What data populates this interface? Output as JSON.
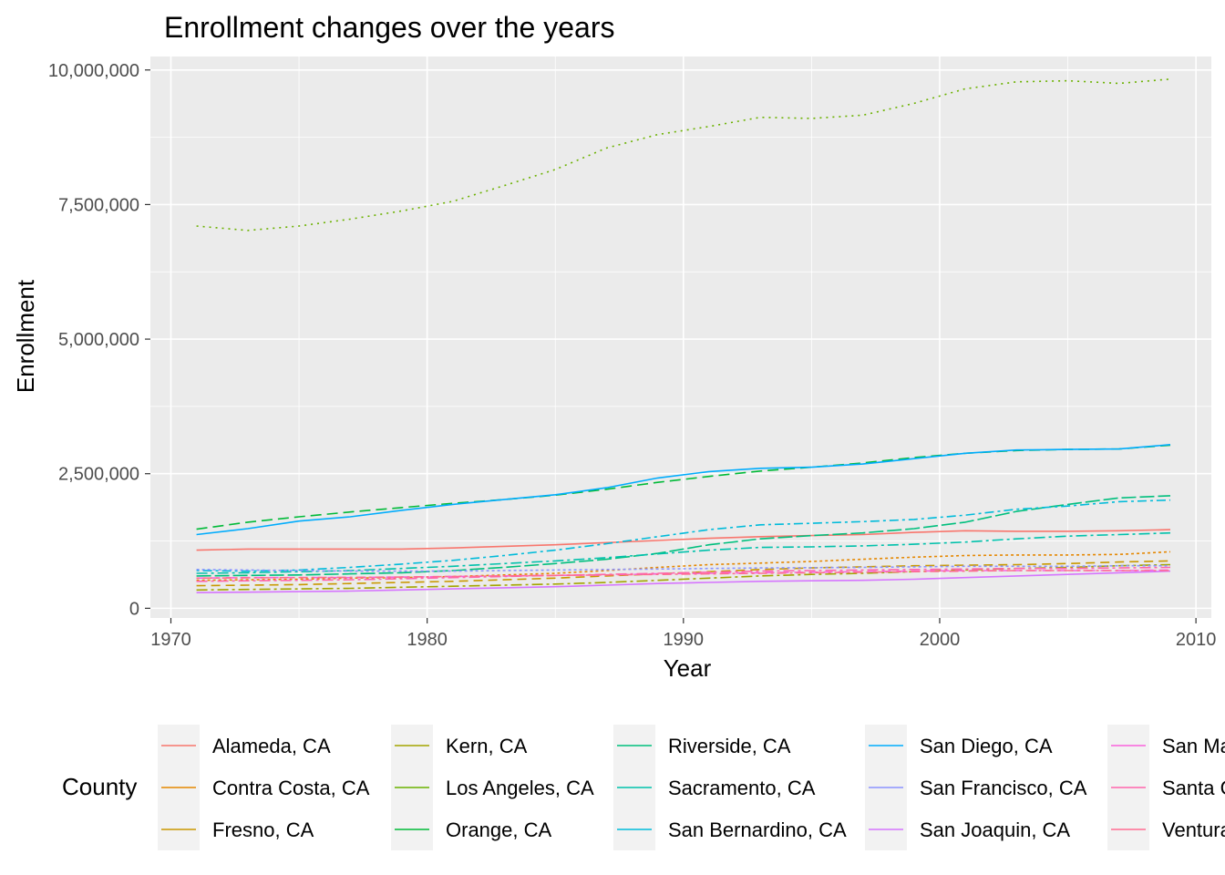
{
  "chart_data": {
    "type": "line",
    "title": "Enrollment changes over the years",
    "xlabel": "Year",
    "ylabel": "Enrollment",
    "xlim": [
      1969.2,
      2010.6
    ],
    "ylim": [
      -180000,
      10250000
    ],
    "x_ticks": [
      1970,
      1980,
      1990,
      2000,
      2010
    ],
    "y_ticks": [
      0,
      2500000,
      5000000,
      7500000,
      10000000
    ],
    "y_tick_labels": [
      "0",
      "2,500,000",
      "5,000,000",
      "7,500,000",
      "10,000,000"
    ],
    "grid": true,
    "legend_position": "bottom",
    "legend_title": "County",
    "years": [
      1971,
      1973,
      1975,
      1977,
      1979,
      1981,
      1983,
      1985,
      1987,
      1989,
      1991,
      1993,
      1995,
      1997,
      1999,
      2001,
      2003,
      2005,
      2007,
      2009
    ],
    "series": [
      {
        "name": "Alameda, CA",
        "color": "#F8766D",
        "dash": "",
        "values": [
          1080000,
          1100000,
          1100000,
          1100000,
          1100000,
          1120000,
          1150000,
          1180000,
          1220000,
          1260000,
          1300000,
          1330000,
          1350000,
          1370000,
          1410000,
          1440000,
          1430000,
          1430000,
          1440000,
          1460000
        ]
      },
      {
        "name": "Contra Costa, CA",
        "color": "#E58700",
        "dash": "3 3",
        "values": [
          520000,
          530000,
          540000,
          560000,
          570000,
          590000,
          620000,
          650000,
          700000,
          760000,
          810000,
          840000,
          870000,
          910000,
          950000,
          980000,
          990000,
          990000,
          1000000,
          1050000
        ]
      },
      {
        "name": "Fresno, CA",
        "color": "#C99800",
        "dash": "10 6",
        "values": [
          420000,
          430000,
          440000,
          460000,
          480000,
          500000,
          530000,
          560000,
          600000,
          640000,
          680000,
          720000,
          750000,
          770000,
          790000,
          800000,
          810000,
          830000,
          860000,
          880000
        ]
      },
      {
        "name": "Kern, CA",
        "color": "#A3A500",
        "dash": "12 4 3 4",
        "values": [
          340000,
          350000,
          360000,
          370000,
          390000,
          410000,
          430000,
          450000,
          480000,
          520000,
          560000,
          600000,
          630000,
          650000,
          680000,
          710000,
          740000,
          760000,
          790000,
          810000
        ]
      },
      {
        "name": "Los Angeles, CA",
        "color": "#6BB100",
        "dash": "2 5",
        "values": [
          7100000,
          7020000,
          7100000,
          7230000,
          7380000,
          7560000,
          7850000,
          8150000,
          8550000,
          8800000,
          8950000,
          9120000,
          9100000,
          9160000,
          9380000,
          9650000,
          9780000,
          9800000,
          9750000,
          9830000
        ]
      },
      {
        "name": "Orange, CA",
        "color": "#00BA38",
        "dash": "12 6",
        "values": [
          1470000,
          1600000,
          1700000,
          1790000,
          1870000,
          1950000,
          2020000,
          2100000,
          2210000,
          2340000,
          2450000,
          2550000,
          2620000,
          2700000,
          2800000,
          2880000,
          2930000,
          2950000,
          2960000,
          3030000
        ]
      },
      {
        "name": "Riverside, CA",
        "color": "#00BF7D",
        "dash": "16 4",
        "values": [
          600000,
          610000,
          620000,
          640000,
          660000,
          700000,
          760000,
          830000,
          910000,
          1020000,
          1180000,
          1290000,
          1350000,
          1400000,
          1480000,
          1600000,
          1800000,
          1930000,
          2050000,
          2090000
        ]
      },
      {
        "name": "Sacramento, CA",
        "color": "#00C1AB",
        "dash": "12 4 3 4",
        "values": [
          650000,
          660000,
          680000,
          700000,
          740000,
          780000,
          830000,
          880000,
          940000,
          1010000,
          1080000,
          1130000,
          1140000,
          1160000,
          1190000,
          1230000,
          1290000,
          1340000,
          1370000,
          1400000
        ]
      },
      {
        "name": "San Bernardino, CA",
        "color": "#00BBDA",
        "dash": "3 4 10 4",
        "values": [
          700000,
          690000,
          710000,
          760000,
          820000,
          890000,
          980000,
          1080000,
          1200000,
          1330000,
          1460000,
          1550000,
          1580000,
          1610000,
          1650000,
          1730000,
          1840000,
          1900000,
          1980000,
          2010000
        ]
      },
      {
        "name": "San Diego, CA",
        "color": "#00ACFC",
        "dash": "",
        "values": [
          1370000,
          1480000,
          1620000,
          1700000,
          1820000,
          1930000,
          2020000,
          2110000,
          2240000,
          2420000,
          2540000,
          2600000,
          2620000,
          2680000,
          2780000,
          2880000,
          2940000,
          2950000,
          2960000,
          3040000
        ]
      },
      {
        "name": "San Francisco, CA",
        "color": "#8B93FF",
        "dash": "3 3",
        "values": [
          720000,
          710000,
          700000,
          690000,
          690000,
          690000,
          700000,
          710000,
          720000,
          730000,
          740000,
          750000,
          755000,
          760000,
          770000,
          780000,
          780000,
          780000,
          790000,
          790000
        ]
      },
      {
        "name": "San Joaquin, CA",
        "color": "#D575FE",
        "dash": "",
        "values": [
          290000,
          300000,
          310000,
          320000,
          340000,
          360000,
          380000,
          400000,
          430000,
          460000,
          480000,
          500000,
          510000,
          520000,
          540000,
          570000,
          600000,
          630000,
          660000,
          690000
        ]
      },
      {
        "name": "San Mateo, CA",
        "color": "#F962DD",
        "dash": "10 6",
        "values": [
          560000,
          570000,
          570000,
          570000,
          580000,
          590000,
          600000,
          610000,
          620000,
          640000,
          650000,
          660000,
          670000,
          680000,
          690000,
          700000,
          700000,
          700000,
          700000,
          710000
        ]
      },
      {
        "name": "Santa Clara, CA",
        "color": "#FF65AC",
        "dash": "12 4 3 4",
        "values": [
          500000,
          510000,
          520000,
          530000,
          550000,
          570000,
          590000,
          610000,
          630000,
          650000,
          670000,
          690000,
          700000,
          710000,
          720000,
          730000,
          740000,
          740000,
          750000,
          760000
        ]
      },
      {
        "name": "Ventura, CA",
        "color": "#FF6C91",
        "dash": "3 4 10 4",
        "values": [
          560000,
          565000,
          570000,
          575000,
          580000,
          590000,
          600000,
          610000,
          620000,
          630000,
          640000,
          650000,
          660000,
          670000,
          680000,
          690000,
          700000,
          700000,
          700000,
          700000
        ]
      }
    ]
  }
}
